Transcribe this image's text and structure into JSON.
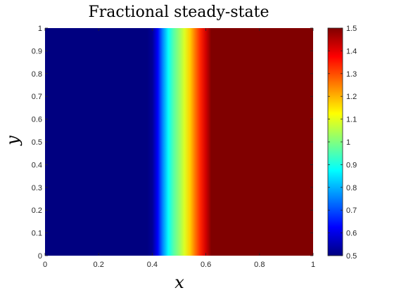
{
  "chart_data": {
    "type": "heatmap",
    "title": "Fractional steady-state",
    "xlabel": "x",
    "ylabel": "y",
    "xlim": [
      0,
      1
    ],
    "ylim": [
      0,
      1
    ],
    "xticks": [
      "0",
      "0.2",
      "0.4",
      "0.6",
      "0.8",
      "1"
    ],
    "yticks": [
      "0",
      "0.1",
      "0.2",
      "0.3",
      "0.4",
      "0.5",
      "0.6",
      "0.7",
      "0.8",
      "0.9",
      "1"
    ],
    "colormap": "jet",
    "clim": [
      0.5,
      1.5
    ],
    "colorbar_ticks": [
      "0.5",
      "0.6",
      "0.7",
      "0.8",
      "0.9",
      "1",
      "1.1",
      "1.2",
      "1.3",
      "1.4",
      "1.5"
    ],
    "field": {
      "varies_along": "x",
      "x": [
        0,
        0.38,
        0.4,
        0.42,
        0.44,
        0.46,
        0.48,
        0.5,
        0.52,
        0.54,
        0.56,
        0.58,
        0.6,
        0.62,
        1
      ],
      "values": [
        0.5,
        0.5,
        0.52,
        0.62,
        0.76,
        0.88,
        0.96,
        1.02,
        1.09,
        1.17,
        1.26,
        1.34,
        1.42,
        1.5,
        1.5
      ]
    },
    "grid": false
  }
}
